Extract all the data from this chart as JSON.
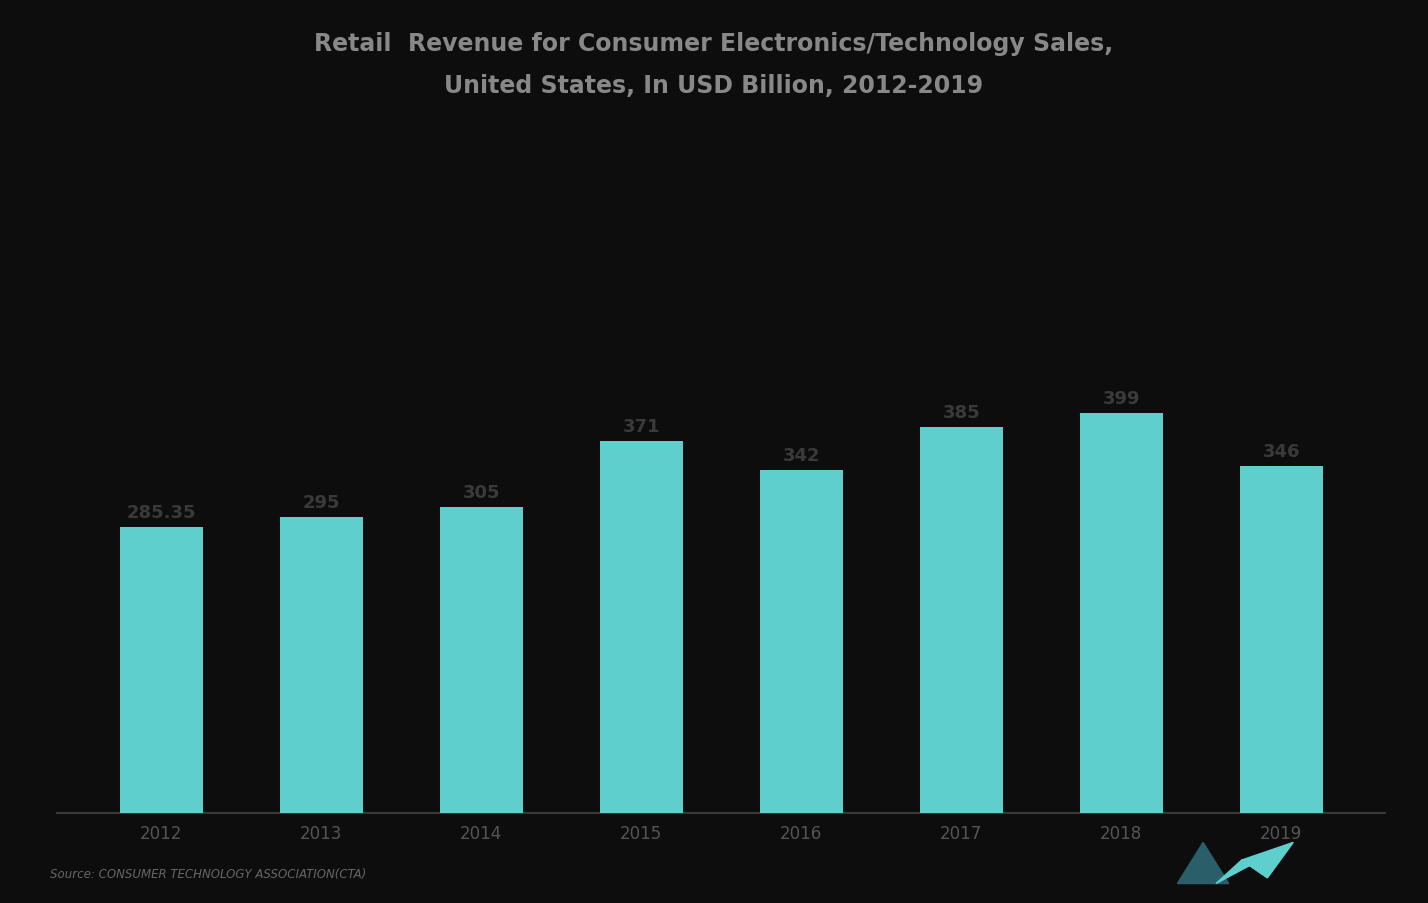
{
  "title_line1": "Retail  Revenue for Consumer Electronics/Technology Sales,",
  "title_line2": "United States, In USD Billion, 2012-2019",
  "years": [
    "2012",
    "2013",
    "2014",
    "2015",
    "2016",
    "2017",
    "2018",
    "2019"
  ],
  "values": [
    285.35,
    295,
    305,
    371,
    342,
    385,
    399,
    346
  ],
  "bar_color": "#5ECFCC",
  "bar_labels": [
    "285.35",
    "295",
    "305",
    "371",
    "342",
    "385",
    "399",
    "346"
  ],
  "background_color": "#0d0d0d",
  "plot_bg_color": "#0d0d0d",
  "text_color": "#3a3a3a",
  "title_color": "#888888",
  "label_color": "#3a3a3a",
  "xtick_color": "#555555",
  "ylim": [
    0,
    700
  ],
  "source_text": "Source: CONSUMER TECHNOLOGY ASSOCIATION(CTA)",
  "title_fontsize": 17,
  "label_fontsize": 13,
  "tick_fontsize": 12
}
